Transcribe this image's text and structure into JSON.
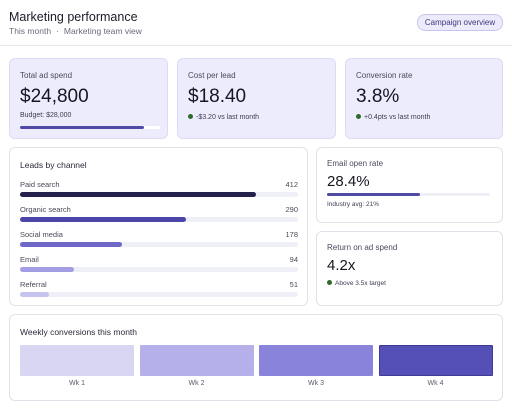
{
  "header": {
    "title": "Marketing performance",
    "period": "This month",
    "separator": "·",
    "view": "Marketing team view",
    "overview_button": "Campaign overview"
  },
  "stats": {
    "ad_spend": {
      "label": "Total ad spend",
      "value": "$24,800",
      "budget": "Budget: $28,000",
      "budget_used_fraction": 0.886
    },
    "cost_per_lead": {
      "label": "Cost per lead",
      "value": "$18.40",
      "change": "-$3.20 vs last month"
    },
    "conversion_rate": {
      "label": "Conversion rate",
      "value": "3.8%",
      "change": "+0.4pts vs last month"
    }
  },
  "leads": {
    "title": "Leads by channel",
    "max": 412,
    "channels": [
      {
        "label": "Paid search",
        "value": 412,
        "color": "#24224d"
      },
      {
        "label": "Organic search",
        "value": 290,
        "color": "#4c46a8"
      },
      {
        "label": "Social media",
        "value": 178,
        "color": "#6f68c8"
      },
      {
        "label": "Email",
        "value": 94,
        "color": "#a39de3"
      },
      {
        "label": "Referral",
        "value": 51,
        "color": "#c7c3ef"
      }
    ]
  },
  "email_open": {
    "label": "Email open rate",
    "value": "28.4%",
    "fraction": 0.568,
    "note": "Industry avg: 21%"
  },
  "roas": {
    "label": "Return on ad spend",
    "value": "4.2x",
    "note": "Above 3.5x target"
  },
  "weekly": {
    "title": "Weekly conversions this month",
    "weeks": [
      {
        "label": "Wk 1",
        "color": "#d9d6f4"
      },
      {
        "label": "Wk 2",
        "color": "#b5b0ea"
      },
      {
        "label": "Wk 3",
        "color": "#8a83dc"
      },
      {
        "label": "Wk 4",
        "color": "#5550b8"
      }
    ]
  },
  "colors": {
    "accent": "#4f4aa6",
    "positive": "#2f6b2f"
  }
}
